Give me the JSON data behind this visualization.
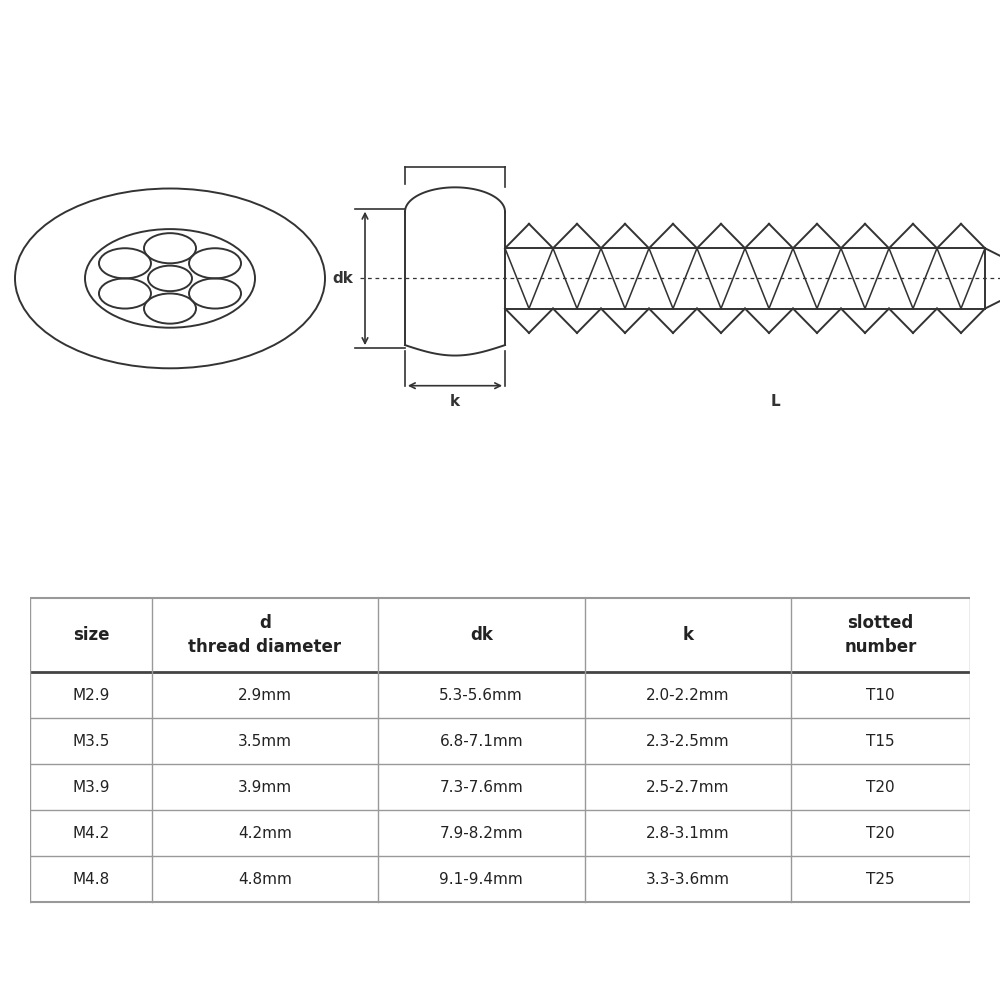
{
  "bg_color": "#ffffff",
  "table_headers": [
    "size",
    "d\nthread diameter",
    "dk",
    "k",
    "slotted\nnumber"
  ],
  "table_rows": [
    [
      "M2.9",
      "2.9mm",
      "5.3-5.6mm",
      "2.0-2.2mm",
      "T10"
    ],
    [
      "M3.5",
      "3.5mm",
      "6.8-7.1mm",
      "2.3-2.5mm",
      "T15"
    ],
    [
      "M3.9",
      "3.9mm",
      "7.3-7.6mm",
      "2.5-2.7mm",
      "T20"
    ],
    [
      "M4.2",
      "4.2mm",
      "7.9-8.2mm",
      "2.8-3.1mm",
      "T20"
    ],
    [
      "M4.8",
      "4.8mm",
      "9.1-9.4mm",
      "3.3-3.6mm",
      "T25"
    ]
  ],
  "line_color": "#333333",
  "text_color": "#222222",
  "table_line_color": "#999999",
  "diagram_area": [
    0.0,
    0.42,
    1.0,
    0.58
  ],
  "table_area": [
    0.03,
    0.01,
    0.94,
    0.4
  ]
}
